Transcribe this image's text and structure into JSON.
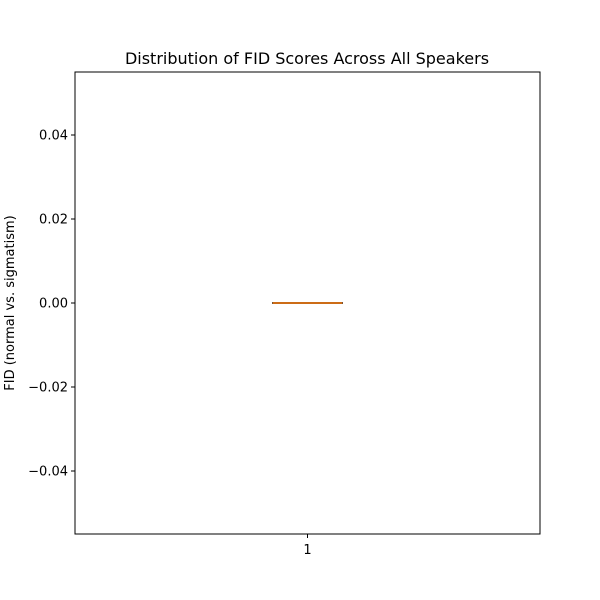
{
  "chart_data": {
    "type": "box",
    "title": "Distribution of FID Scores Across All Speakers",
    "xlabel": "",
    "ylabel": "FID (normal vs. sigmatism)",
    "categories": [
      "1"
    ],
    "boxes": [
      {
        "category": "1",
        "min": 0.0,
        "q1": 0.0,
        "median": 0.0,
        "q3": 0.0,
        "max": 0.0
      }
    ],
    "ylim": [
      -0.055,
      0.055
    ],
    "yticks": [
      -0.04,
      -0.02,
      0.0,
      0.02,
      0.04
    ],
    "ytick_labels": [
      "−0.04",
      "−0.02",
      "0.00",
      "0.02",
      "0.04"
    ],
    "grid": false,
    "colors": {
      "box": "#000000",
      "median": "#ff7f0e"
    }
  }
}
